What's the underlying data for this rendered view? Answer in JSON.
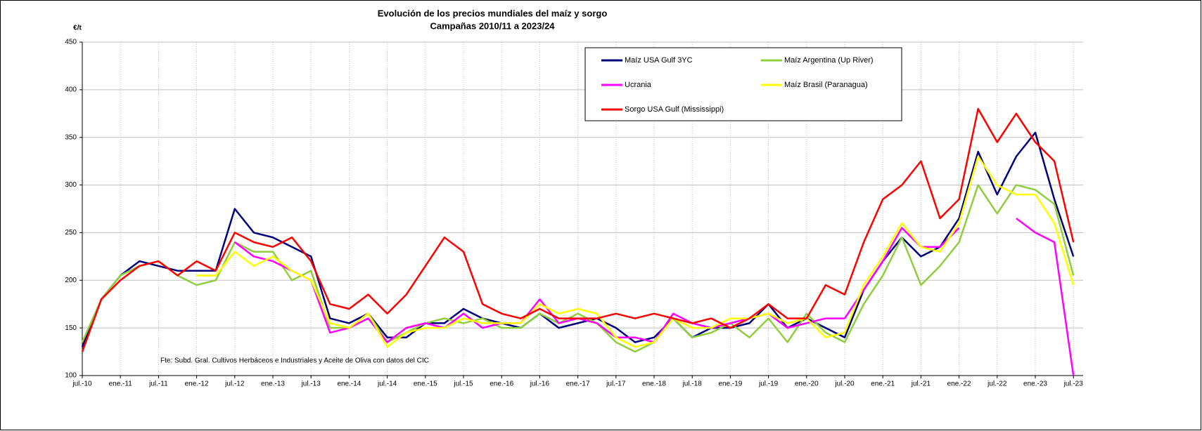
{
  "chart_data": {
    "type": "line",
    "title": "Evolución de los precios mundiales del maíz y sorgo",
    "subtitle": "Campañas 2010/11 a 2023/24",
    "y_label": "€/t",
    "annotation": "Fte: Subd. Gral. Cultivos Herbáceos e Industriales y Aceite de Oliva con datos del CIC",
    "categories": [
      "jul.-10",
      null,
      "ene.-11",
      null,
      "jul.-11",
      null,
      "ene.-12",
      null,
      "jul.-12",
      null,
      "ene.-13",
      null,
      "jul.-13",
      null,
      "ene.-14",
      null,
      "jul.-14",
      null,
      "ene.-15",
      null,
      "jul.-15",
      null,
      "ene.-16",
      null,
      "jul.-16",
      null,
      "ene.-17",
      null,
      "jul.-17",
      null,
      "ene.-18",
      null,
      "jul.-18",
      null,
      "ene.-19",
      null,
      "jul.-19",
      null,
      "ene.-20",
      null,
      "jul.-20",
      null,
      "ene.-21",
      null,
      "jul.-21",
      null,
      "ene.-22",
      null,
      "jul.-22",
      null,
      "ene.-23",
      null,
      "jul.-23"
    ],
    "series": [
      {
        "name": "Maíz USA Gulf 3YC",
        "color": "#00007f",
        "values": [
          130,
          180,
          205,
          220,
          215,
          210,
          210,
          210,
          275,
          250,
          245,
          235,
          225,
          160,
          155,
          165,
          140,
          140,
          155,
          155,
          170,
          160,
          155,
          150,
          165,
          150,
          155,
          160,
          150,
          135,
          140,
          160,
          140,
          150,
          150,
          155,
          175,
          150,
          160,
          150,
          140,
          190,
          220,
          245,
          225,
          235,
          265,
          335,
          290,
          330,
          355,
          285,
          225
        ]
      },
      {
        "name": "Maíz Argentina (Up River)",
        "color": "#8fce3c",
        "values": [
          135,
          180,
          205,
          215,
          220,
          205,
          195,
          200,
          240,
          230,
          230,
          200,
          210,
          150,
          150,
          165,
          135,
          145,
          155,
          160,
          155,
          160,
          150,
          150,
          165,
          155,
          165,
          155,
          135,
          125,
          135,
          160,
          140,
          145,
          155,
          140,
          160,
          135,
          165,
          145,
          135,
          175,
          205,
          245,
          195,
          215,
          240,
          300,
          270,
          300,
          295,
          280,
          205
        ]
      },
      {
        "name": "Ucrania",
        "color": "#ff00ff",
        "values": [
          null,
          null,
          null,
          null,
          null,
          null,
          null,
          null,
          240,
          225,
          220,
          210,
          200,
          145,
          150,
          160,
          135,
          150,
          155,
          150,
          165,
          150,
          155,
          155,
          180,
          155,
          160,
          155,
          140,
          140,
          135,
          165,
          155,
          150,
          155,
          160,
          165,
          150,
          155,
          160,
          160,
          190,
          220,
          255,
          235,
          235,
          255,
          null,
          null,
          265,
          250,
          240,
          100
        ]
      },
      {
        "name": "Maíz Brasil (Paranagua)",
        "color": "#ffff00",
        "values": [
          null,
          null,
          null,
          null,
          null,
          null,
          205,
          205,
          230,
          215,
          225,
          210,
          200,
          155,
          150,
          165,
          130,
          145,
          150,
          150,
          160,
          155,
          155,
          155,
          175,
          165,
          170,
          165,
          140,
          130,
          135,
          160,
          150,
          150,
          160,
          160,
          165,
          155,
          160,
          140,
          145,
          195,
          225,
          260,
          235,
          230,
          260,
          330,
          300,
          290,
          290,
          260,
          195
        ]
      },
      {
        "name": "Sorgo USA Gulf (Mississippi)",
        "color": "#ff0000",
        "values": [
          125,
          180,
          200,
          215,
          220,
          205,
          220,
          210,
          250,
          240,
          235,
          245,
          220,
          175,
          170,
          185,
          165,
          185,
          215,
          245,
          230,
          175,
          165,
          160,
          170,
          160,
          160,
          160,
          165,
          160,
          165,
          160,
          155,
          160,
          150,
          160,
          175,
          160,
          160,
          195,
          185,
          240,
          285,
          300,
          325,
          265,
          285,
          380,
          345,
          375,
          345,
          325,
          240
        ]
      }
    ],
    "ylim": [
      100,
      450
    ],
    "yticks": [
      100,
      150,
      200,
      250,
      300,
      350,
      400,
      450
    ],
    "grid": true
  }
}
